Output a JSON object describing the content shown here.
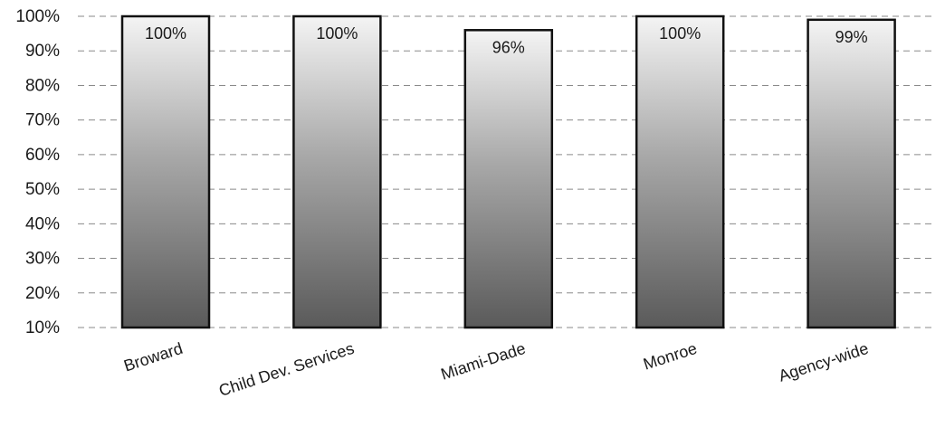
{
  "chart_data": {
    "type": "bar",
    "categories": [
      "Broward",
      "Child Dev. Services",
      "Miami-Dade",
      "Monroe",
      "Agency-wide"
    ],
    "values": [
      100,
      100,
      96,
      100,
      99
    ],
    "data_labels": [
      "100%",
      "100%",
      "96%",
      "100%",
      "99%"
    ],
    "y_ticks": [
      "10%",
      "20%",
      "30%",
      "40%",
      "50%",
      "60%",
      "70%",
      "80%",
      "90%",
      "100%"
    ],
    "ylim": [
      10,
      100
    ],
    "title": "",
    "xlabel": "",
    "ylabel": "",
    "grid": true,
    "legend": "none",
    "colors": {
      "bar_top": "#f4f4f4",
      "bar_bottom": "#5a5a5a",
      "bar_border": "#111111",
      "grid": "#8a8a8a"
    }
  }
}
